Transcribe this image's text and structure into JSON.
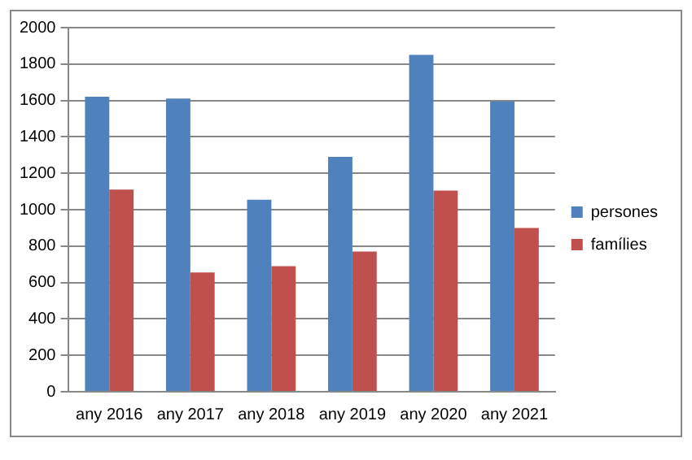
{
  "chart_data": {
    "type": "bar",
    "categories": [
      "any 2016",
      "any 2017",
      "any 2018",
      "any 2019",
      "any 2020",
      "any 2021"
    ],
    "series": [
      {
        "name": "persones",
        "color": "#4f81bd",
        "values": [
          1620,
          1610,
          1055,
          1290,
          1850,
          1595
        ]
      },
      {
        "name": "famílies",
        "color": "#c0504d",
        "values": [
          1110,
          655,
          690,
          770,
          1105,
          900
        ]
      }
    ],
    "ylim": [
      0,
      2000
    ],
    "yticks": [
      0,
      200,
      400,
      600,
      800,
      1000,
      1200,
      1400,
      1600,
      1800,
      2000
    ],
    "grid": "y",
    "legend": "right"
  }
}
